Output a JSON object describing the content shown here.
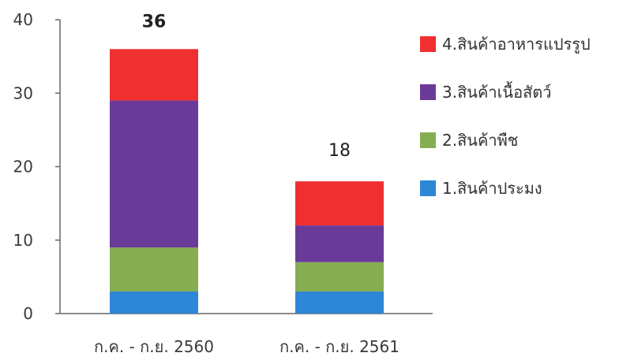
{
  "chart_data": {
    "type": "bar",
    "stacked": true,
    "categories": [
      "ก.ค. - ก.ย. 2560",
      "ก.ค. - ก.ย. 2561"
    ],
    "series": [
      {
        "name": "1.สินค้าประมง",
        "color": "#2e86d6",
        "values": [
          3,
          3
        ]
      },
      {
        "name": "2.สินค้าพืช",
        "color": "#86ad52",
        "values": [
          6,
          4
        ]
      },
      {
        "name": "3.สินค้าเนื้อสัตว์",
        "color": "#6a3a99",
        "values": [
          20,
          5
        ]
      },
      {
        "name": "4.สินค้าอาหารแปรรูป",
        "color": "#f03030",
        "values": [
          7,
          6
        ]
      }
    ],
    "totals": [
      "36",
      "18"
    ],
    "ylim": [
      0,
      40
    ],
    "yticks": [
      "0",
      "10",
      "20",
      "30",
      "40"
    ],
    "legend_position": "right",
    "grid": false
  }
}
